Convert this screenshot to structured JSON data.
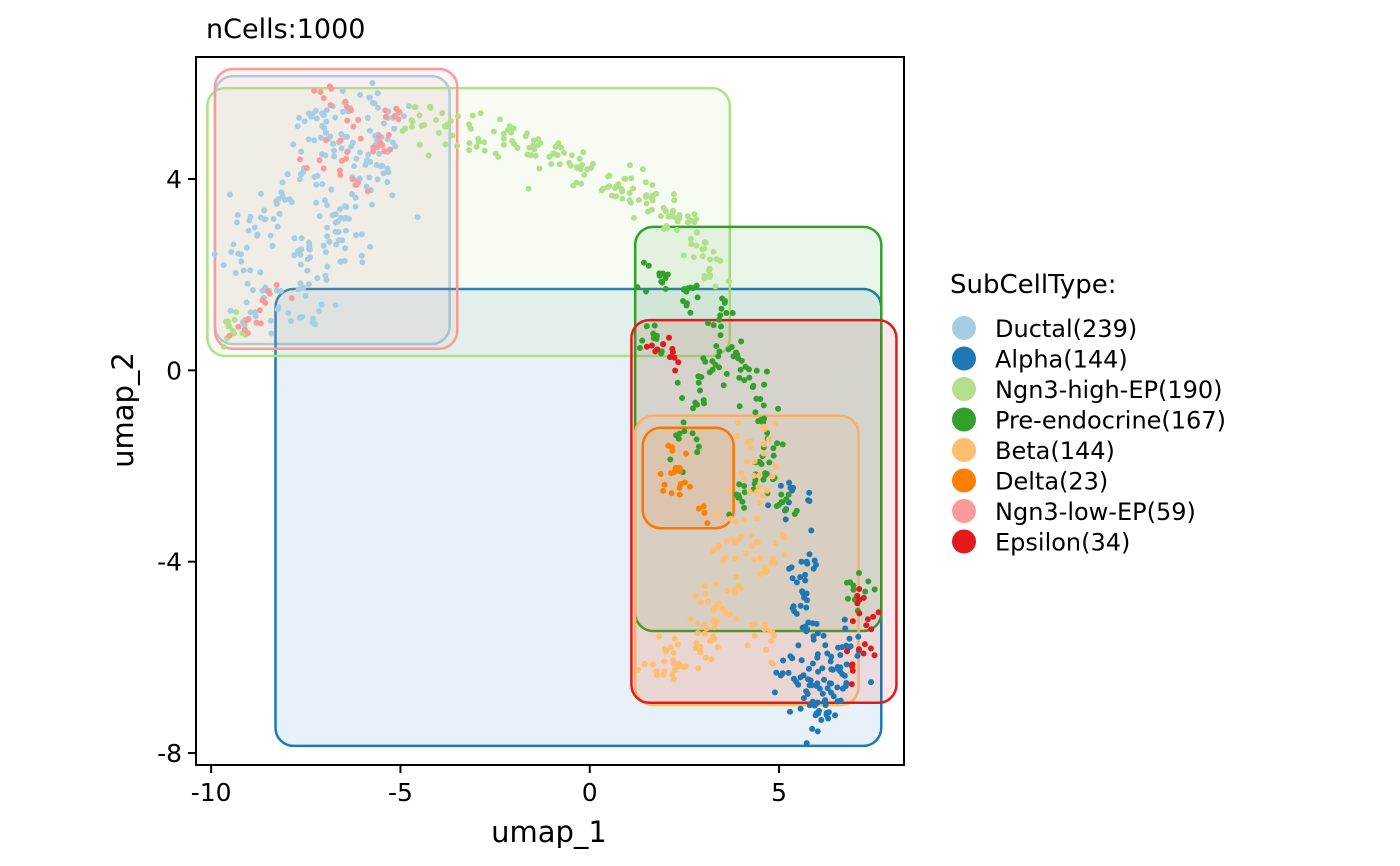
{
  "chart_data": {
    "type": "scatter",
    "title": "nCells:1000",
    "xlabel": "umap_1",
    "ylabel": "umap_2",
    "xlim": [
      -10.4,
      8.3
    ],
    "ylim": [
      -8.25,
      6.55
    ],
    "xticks": [
      -10,
      -5,
      0,
      5
    ],
    "xtick_labels": [
      "-10",
      "-5",
      "0",
      "5"
    ],
    "yticks": [
      -8,
      -4,
      0,
      4
    ],
    "ytick_labels": [
      "-8",
      "-4",
      "0",
      "4"
    ],
    "grid": false,
    "legend_position": "right",
    "legend_title": "SubCellType:",
    "series": [
      {
        "name": "Ductal(239)",
        "color": "#A6CEE3",
        "box": [
          -9.9,
          -3.7,
          0.55,
          6.15
        ],
        "anchors": [
          [
            -9.3,
            2.3
          ],
          [
            -9.0,
            1.6
          ],
          [
            -8.7,
            3.3
          ],
          [
            -8.2,
            3.6
          ],
          [
            -7.8,
            2.4
          ],
          [
            -7.5,
            1.5
          ],
          [
            -7.6,
            4.0
          ],
          [
            -7.3,
            5.0
          ],
          [
            -7.0,
            5.3
          ],
          [
            -6.7,
            4.7
          ],
          [
            -6.5,
            3.5
          ],
          [
            -6.4,
            2.6
          ],
          [
            -6.1,
            4.6
          ],
          [
            -5.8,
            5.4
          ],
          [
            -5.6,
            4.6
          ],
          [
            -5.3,
            5.0
          ],
          [
            -5.5,
            3.9
          ],
          [
            -6.9,
            3.0
          ],
          [
            -7.2,
            2.0
          ],
          [
            -8.4,
            1.3
          ]
        ],
        "spread": 0.35,
        "count": 239
      },
      {
        "name": "Alpha(144)",
        "color": "#1F78B4",
        "box": [
          -8.3,
          7.7,
          -7.85,
          1.7
        ],
        "anchors": [
          [
            5.6,
            -4.0
          ],
          [
            5.8,
            -4.8
          ],
          [
            5.9,
            -5.5
          ],
          [
            6.1,
            -6.2
          ],
          [
            6.4,
            -6.4
          ],
          [
            5.7,
            -6.8
          ],
          [
            6.0,
            -7.2
          ],
          [
            6.5,
            -6.9
          ],
          [
            5.5,
            -6.3
          ],
          [
            6.8,
            -5.8
          ],
          [
            5.3,
            -2.8
          ]
        ],
        "spread": 0.28,
        "count": 144
      },
      {
        "name": "Ngn3-high-EP(190)",
        "color": "#B2DF8A",
        "box": [
          -10.1,
          3.7,
          0.3,
          5.9
        ],
        "anchors": [
          [
            -4.5,
            5.2
          ],
          [
            -3.8,
            5.0
          ],
          [
            -3.0,
            4.9
          ],
          [
            -2.2,
            4.8
          ],
          [
            -1.5,
            4.6
          ],
          [
            -0.8,
            4.4
          ],
          [
            -0.2,
            4.2
          ],
          [
            0.5,
            4.0
          ],
          [
            1.0,
            3.8
          ],
          [
            1.5,
            3.6
          ],
          [
            2.0,
            3.3
          ],
          [
            2.5,
            3.0
          ],
          [
            2.8,
            2.6
          ],
          [
            3.2,
            2.2
          ],
          [
            -9.4,
            0.9
          ]
        ],
        "spread": 0.2,
        "count": 190
      },
      {
        "name": "Pre-endocrine(167)",
        "color": "#33A02C",
        "box": [
          1.2,
          7.7,
          -5.45,
          3.0
        ],
        "anchors": [
          [
            1.8,
            2.0
          ],
          [
            2.5,
            1.6
          ],
          [
            3.5,
            1.2
          ],
          [
            3.8,
            0.5
          ],
          [
            4.2,
            -0.2
          ],
          [
            4.6,
            -0.8
          ],
          [
            4.8,
            -1.6
          ],
          [
            4.6,
            -2.2
          ],
          [
            5.0,
            -2.8
          ],
          [
            3.3,
            0.0
          ],
          [
            2.9,
            -0.5
          ],
          [
            2.5,
            -1.5
          ],
          [
            4.0,
            -2.6
          ],
          [
            7.0,
            -4.6
          ],
          [
            1.8,
            0.6
          ]
        ],
        "spread": 0.22,
        "count": 167
      },
      {
        "name": "Beta(144)",
        "color": "#FDBF6F",
        "box": [
          1.2,
          7.1,
          -7.0,
          -0.95
        ],
        "anchors": [
          [
            4.5,
            -1.5
          ],
          [
            4.2,
            -2.5
          ],
          [
            3.9,
            -3.4
          ],
          [
            3.6,
            -4.2
          ],
          [
            3.3,
            -4.8
          ],
          [
            3.2,
            -5.3
          ],
          [
            2.9,
            -5.8
          ],
          [
            2.3,
            -6.1
          ],
          [
            1.9,
            -6.3
          ],
          [
            4.5,
            -5.6
          ],
          [
            4.7,
            -4.0
          ]
        ],
        "spread": 0.28,
        "count": 144
      },
      {
        "name": "Delta(23)",
        "color": "#FF7F00",
        "box": [
          1.4,
          3.8,
          -3.3,
          -1.2
        ],
        "anchors": [
          [
            2.0,
            -2.4
          ],
          [
            2.3,
            -2.1
          ],
          [
            2.5,
            -2.5
          ],
          [
            2.2,
            -1.6
          ],
          [
            3.1,
            -2.95
          ]
        ],
        "spread": 0.15,
        "count": 23
      },
      {
        "name": "Ngn3-low-EP(59)",
        "color": "#FB9A99",
        "box": [
          -9.9,
          -3.5,
          0.45,
          6.3
        ],
        "anchors": [
          [
            -5.0,
            5.3
          ],
          [
            -5.6,
            5.1
          ],
          [
            -6.2,
            5.4
          ],
          [
            -6.9,
            5.6
          ],
          [
            -7.3,
            4.4
          ],
          [
            -6.7,
            4.7
          ],
          [
            -6.2,
            4.0
          ],
          [
            -5.5,
            4.5
          ],
          [
            -8.9,
            1.2
          ],
          [
            -9.2,
            0.9
          ],
          [
            -8.3,
            1.7
          ]
        ],
        "spread": 0.2,
        "count": 59
      },
      {
        "name": "Epsilon(34)",
        "color": "#E31A1C",
        "box": [
          1.1,
          8.1,
          -6.95,
          1.05
        ],
        "anchors": [
          [
            1.7,
            0.5
          ],
          [
            2.2,
            0.3
          ],
          [
            7.1,
            -4.8
          ],
          [
            7.4,
            -5.3
          ],
          [
            7.2,
            -5.8
          ],
          [
            6.9,
            -6.2
          ]
        ],
        "spread": 0.15,
        "count": 34
      }
    ]
  }
}
